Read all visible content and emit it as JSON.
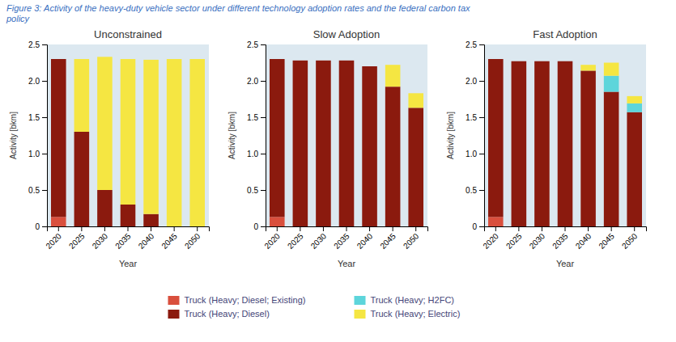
{
  "title": [
    "Figure 3: Activity of the heavy-duty vehicle sector under different technology adoption rates and the federal carbon tax",
    "policy"
  ],
  "legend": "bottom",
  "chart_data": [
    {
      "type": "bar",
      "stacked": true,
      "grid": false,
      "title": "Unconstrained",
      "x_label": "Year",
      "y_label": "Activity [bkm]",
      "categories": [
        2020,
        2025,
        2030,
        2035,
        2040,
        2045,
        2050
      ],
      "ylim": [
        0,
        2.5
      ],
      "yticks": [
        0,
        0.5,
        {
          "value": 1.0,
          "label": "1.0"
        },
        1.5,
        {
          "value": 2.0,
          "label": "2.0"
        },
        2.5
      ],
      "series": [
        {
          "name": "Truck (Heavy; Diesel; Existing)",
          "color": "#d94f3d",
          "values": [
            0.13,
            0.0,
            0.0,
            0.0,
            0.0,
            0.0,
            0.0
          ]
        },
        {
          "name": "Truck (Heavy; Diesel)",
          "color": "#8b1a0e",
          "values": [
            2.17,
            1.3,
            0.5,
            0.3,
            0.17,
            0.0,
            0.0
          ]
        },
        {
          "name": "Truck (Heavy; H2FC)",
          "color": "#5dd5db",
          "values": [
            0.0,
            0.0,
            0.0,
            0.0,
            0.0,
            0.0,
            0.0
          ]
        },
        {
          "name": "Truck (Heavy; Electric)",
          "color": "#f5e642",
          "values": [
            0.0,
            1.0,
            1.83,
            2.0,
            2.12,
            2.3,
            2.3
          ]
        }
      ]
    },
    {
      "type": "bar",
      "stacked": true,
      "grid": false,
      "title": "Slow Adoption",
      "x_label": "Year",
      "y_label": "Activity [bkm]",
      "categories": [
        2020,
        2025,
        2030,
        2035,
        2040,
        2045,
        2050
      ],
      "ylim": [
        0,
        2.5
      ],
      "yticks": [
        0,
        0.5,
        {
          "value": 1.0,
          "label": "1.0"
        },
        1.5,
        {
          "value": 2.0,
          "label": "2.0"
        },
        2.5
      ],
      "series": [
        {
          "name": "Truck (Heavy; Diesel; Existing)",
          "color": "#d94f3d",
          "values": [
            0.13,
            0.0,
            0.0,
            0.0,
            0.0,
            0.0,
            0.0
          ]
        },
        {
          "name": "Truck (Heavy; Diesel)",
          "color": "#8b1a0e",
          "values": [
            2.17,
            2.28,
            2.28,
            2.28,
            2.2,
            1.92,
            1.63
          ]
        },
        {
          "name": "Truck (Heavy; H2FC)",
          "color": "#5dd5db",
          "values": [
            0.0,
            0.0,
            0.0,
            0.0,
            0.0,
            0.0,
            0.0
          ]
        },
        {
          "name": "Truck (Heavy; Electric)",
          "color": "#f5e642",
          "values": [
            0.0,
            0.0,
            0.0,
            0.0,
            0.0,
            0.3,
            0.2
          ]
        }
      ]
    },
    {
      "type": "bar",
      "stacked": true,
      "grid": false,
      "title": "Fast Adoption",
      "x_label": "Year",
      "y_label": "Activity [bkm]",
      "categories": [
        2020,
        2025,
        2030,
        2035,
        2040,
        2045,
        2050
      ],
      "ylim": [
        0,
        2.5
      ],
      "yticks": [
        0,
        0.5,
        {
          "value": 1.0,
          "label": "1.0"
        },
        1.5,
        {
          "value": 2.0,
          "label": "2.0"
        },
        2.5
      ],
      "series": [
        {
          "name": "Truck (Heavy; Diesel; Existing)",
          "color": "#d94f3d",
          "values": [
            0.13,
            0.0,
            0.0,
            0.0,
            0.0,
            0.0,
            0.0
          ]
        },
        {
          "name": "Truck (Heavy; Diesel)",
          "color": "#8b1a0e",
          "values": [
            2.17,
            2.27,
            2.27,
            2.27,
            2.14,
            1.85,
            1.57
          ]
        },
        {
          "name": "Truck (Heavy; H2FC)",
          "color": "#5dd5db",
          "values": [
            0.0,
            0.0,
            0.0,
            0.0,
            0.0,
            0.22,
            0.12
          ]
        },
        {
          "name": "Truck (Heavy; Electric)",
          "color": "#f5e642",
          "values": [
            0.0,
            0.0,
            0.0,
            0.0,
            0.08,
            0.18,
            0.1
          ]
        }
      ]
    }
  ]
}
